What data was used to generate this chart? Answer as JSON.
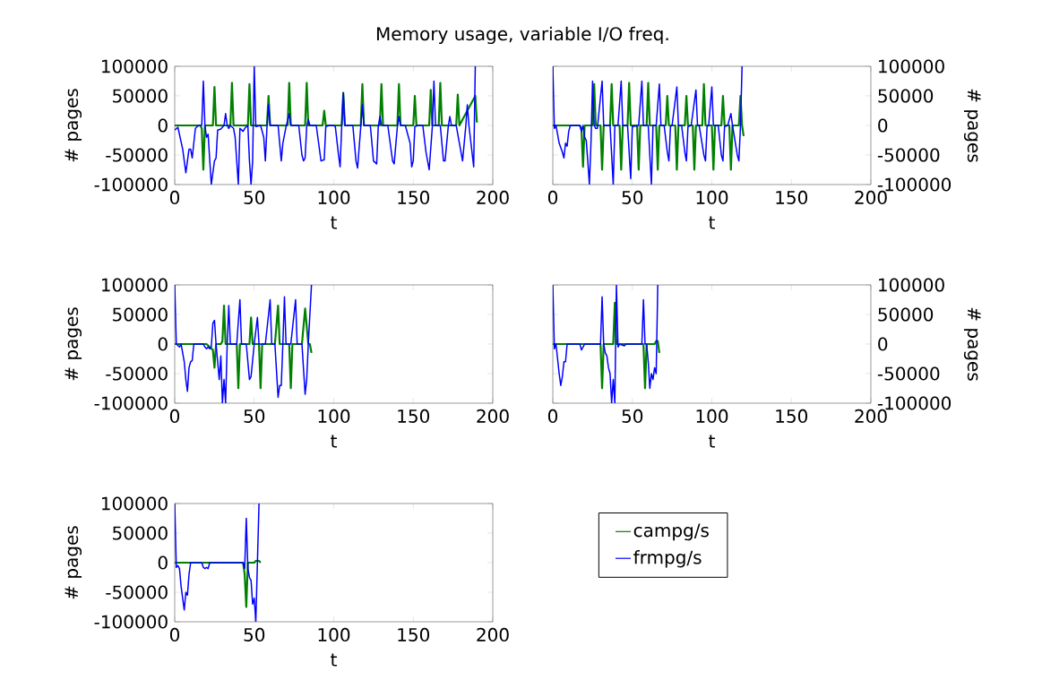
{
  "chart_data": [
    {
      "type": "line",
      "title": "Memory usage, variable I/O freq.",
      "xlabel": "t",
      "ylabel": "# pages",
      "xlim": [
        0,
        200
      ],
      "ylim": [
        -100000,
        100000
      ],
      "xticks": [
        0,
        50,
        100,
        150,
        200
      ],
      "yticks": [
        -100000,
        -50000,
        0,
        50000,
        100000
      ],
      "grid": false,
      "marker": "none",
      "series": [
        {
          "color": "#008000",
          "x": [
            0,
            16,
            17,
            18,
            19,
            24,
            25,
            26,
            35,
            36,
            37,
            46,
            47,
            48,
            58,
            59,
            60,
            71,
            72,
            73,
            82,
            83,
            84,
            93,
            94,
            95,
            105,
            106,
            107,
            117,
            118,
            119,
            129,
            130,
            131,
            140,
            141,
            142,
            150,
            151,
            152,
            160,
            161,
            162,
            166,
            167,
            168,
            177,
            178,
            179,
            189,
            190
          ],
          "values": [
            0,
            0,
            -5000,
            -75000,
            0,
            0,
            65000,
            0,
            0,
            72000,
            0,
            0,
            70000,
            0,
            0,
            50000,
            0,
            0,
            72000,
            0,
            0,
            72000,
            0,
            0,
            25000,
            0,
            0,
            55000,
            0,
            0,
            70000,
            0,
            0,
            70000,
            0,
            0,
            70000,
            0,
            0,
            50000,
            0,
            0,
            60000,
            0,
            0,
            72000,
            0,
            0,
            52000,
            0,
            50000,
            5000
          ]
        },
        {
          "color": "#0000ff",
          "x": [
            0,
            2,
            5,
            7,
            9,
            10,
            11,
            13,
            15,
            17,
            18,
            19,
            20,
            21,
            23,
            25,
            26,
            27,
            29,
            31,
            32,
            33,
            34,
            35,
            37,
            38,
            40,
            41,
            43,
            44,
            46,
            47,
            48,
            49,
            50,
            51,
            54,
            56,
            57,
            58,
            59,
            60,
            65,
            67,
            68,
            70,
            72,
            73,
            78,
            80,
            81,
            82,
            83,
            84,
            85,
            89,
            92,
            94,
            95,
            97,
            100,
            101,
            103,
            104,
            105,
            106,
            107,
            112,
            114,
            115,
            117,
            118,
            119,
            123,
            125,
            127,
            128,
            129,
            130,
            134,
            137,
            138,
            140,
            141,
            142,
            145,
            148,
            149,
            150,
            151,
            153,
            156,
            158,
            160,
            162,
            163,
            164,
            167,
            169,
            170,
            172,
            173,
            174,
            177,
            180,
            181,
            183,
            184,
            185,
            188,
            189
          ],
          "values": [
            -8000,
            -3000,
            -40000,
            -80000,
            -40000,
            -40000,
            -55000,
            -5000,
            0,
            0,
            75000,
            0,
            -20000,
            -15000,
            -100000,
            -60000,
            -55000,
            -8000,
            -6000,
            0,
            20000,
            0,
            -5000,
            0,
            -5000,
            -20000,
            -100000,
            -5000,
            -10000,
            -5000,
            0,
            -60000,
            -100000,
            -60000,
            100000,
            -2000,
            0,
            -20000,
            -60000,
            -3000,
            35000,
            0,
            0,
            -60000,
            -30000,
            -2000,
            20000,
            0,
            0,
            -50000,
            -60000,
            -55000,
            -2000,
            10000,
            0,
            0,
            -60000,
            -58000,
            -2000,
            0,
            0,
            -2000,
            -50000,
            -70000,
            -2000,
            55000,
            0,
            0,
            -60000,
            -72000,
            -2000,
            35000,
            0,
            0,
            -60000,
            -65000,
            -2000,
            15000,
            0,
            0,
            -60000,
            -65000,
            -2000,
            15000,
            0,
            0,
            -30000,
            -70000,
            -60000,
            -2000,
            0,
            0,
            -45000,
            -75000,
            -2000,
            75000,
            0,
            0,
            -60000,
            -60000,
            -2000,
            15000,
            0,
            0,
            -45000,
            -60000,
            -2000,
            35000,
            0,
            -70000,
            100000
          ]
        }
      ]
    },
    {
      "type": "line",
      "xlabel": "t",
      "ylabel": "# pages",
      "xlim": [
        0,
        200
      ],
      "ylim": [
        -100000,
        100000
      ],
      "xticks": [
        0,
        50,
        100,
        150,
        200
      ],
      "yticks": [
        -100000,
        -50000,
        0,
        50000,
        100000
      ],
      "grid": false,
      "marker": "none",
      "series": [
        {
          "color": "#008000",
          "x": [
            0,
            17,
            18,
            19,
            20,
            25,
            26,
            27,
            30,
            31,
            32,
            36,
            37,
            38,
            42,
            43,
            44,
            47,
            48,
            49,
            53,
            54,
            55,
            59,
            60,
            61,
            65,
            66,
            67,
            71,
            72,
            73,
            77,
            78,
            79,
            83,
            84,
            85,
            88,
            89,
            90,
            94,
            95,
            96,
            100,
            101,
            102,
            106,
            107,
            108,
            111,
            112,
            113,
            117,
            118,
            119,
            120
          ],
          "values": [
            0,
            0,
            -5000,
            -70000,
            0,
            0,
            70000,
            0,
            0,
            -75000,
            0,
            0,
            70000,
            0,
            0,
            -75000,
            0,
            0,
            72000,
            0,
            0,
            -75000,
            0,
            0,
            72000,
            0,
            0,
            -75000,
            0,
            0,
            50000,
            0,
            0,
            -75000,
            0,
            0,
            50000,
            0,
            0,
            -75000,
            0,
            0,
            70000,
            0,
            0,
            -75000,
            0,
            0,
            50000,
            0,
            0,
            -75000,
            0,
            0,
            50000,
            0,
            -18000
          ]
        },
        {
          "color": "#0000ff",
          "x": [
            0,
            1,
            2,
            4,
            6,
            7,
            8,
            9,
            10,
            11,
            17,
            18,
            19,
            20,
            21,
            22,
            23,
            24,
            25,
            26,
            27,
            28,
            31,
            32,
            36,
            38,
            39,
            41,
            43,
            44,
            47,
            49,
            50,
            54,
            56,
            57,
            60,
            62,
            63,
            65,
            67,
            68,
            70,
            72,
            73,
            74,
            75,
            78,
            79,
            81,
            83,
            84,
            85,
            87,
            90,
            91,
            92,
            95,
            96,
            97,
            98,
            100,
            101,
            104,
            106,
            107,
            108,
            110,
            112,
            113,
            116,
            117,
            118,
            119
          ],
          "values": [
            100000,
            -5000,
            0,
            -30000,
            -45000,
            -55000,
            -30000,
            -35000,
            -10000,
            0,
            0,
            -10000,
            0,
            -20000,
            -25000,
            -60000,
            -100000,
            -30000,
            75000,
            0,
            -5000,
            -5000,
            75000,
            0,
            0,
            -100000,
            0,
            0,
            75000,
            0,
            0,
            -90000,
            -2000,
            0,
            75000,
            0,
            0,
            -100000,
            0,
            0,
            70000,
            0,
            0,
            -45000,
            -60000,
            -2000,
            0,
            65000,
            0,
            0,
            -45000,
            -60000,
            -2000,
            0,
            60000,
            0,
            0,
            -50000,
            -60000,
            -2000,
            0,
            65000,
            0,
            0,
            -50000,
            -60000,
            -2000,
            0,
            20000,
            0,
            -50000,
            -60000,
            -2000,
            100000
          ]
        }
      ]
    },
    {
      "type": "line",
      "xlabel": "t",
      "ylabel": "# pages",
      "xlim": [
        0,
        200
      ],
      "ylim": [
        -100000,
        100000
      ],
      "xticks": [
        0,
        50,
        100,
        150,
        200
      ],
      "yticks": [
        -100000,
        -50000,
        0,
        50000,
        100000
      ],
      "grid": false,
      "marker": "none",
      "series": [
        {
          "color": "#008000",
          "x": [
            0,
            20,
            22,
            24,
            25,
            26,
            29,
            30,
            31,
            32,
            39,
            40,
            41,
            47,
            48,
            49,
            53,
            54,
            55,
            63,
            65,
            66,
            72,
            73,
            74,
            80,
            82,
            84,
            85,
            86
          ],
          "values": [
            0,
            0,
            -5000,
            -10000,
            -40000,
            0,
            0,
            5000,
            65000,
            0,
            0,
            -75000,
            0,
            0,
            45000,
            0,
            0,
            -75000,
            0,
            0,
            65000,
            0,
            0,
            -75000,
            0,
            0,
            60000,
            0,
            0,
            -15000
          ]
        },
        {
          "color": "#0000ff",
          "x": [
            0,
            1,
            3,
            4,
            6,
            7,
            8,
            9,
            10,
            11,
            12,
            18,
            19,
            20,
            21,
            22,
            23,
            24,
            25,
            26,
            27,
            28,
            29,
            30,
            31,
            32,
            33,
            34,
            35,
            39,
            41,
            42,
            45,
            47,
            48,
            50,
            52,
            53,
            57,
            60,
            61,
            63,
            65,
            66,
            67,
            68,
            69,
            70,
            73,
            76,
            77,
            80,
            82,
            83,
            84,
            86
          ],
          "values": [
            100000,
            0,
            -5000,
            0,
            -30000,
            -60000,
            -80000,
            -40000,
            -30000,
            -28000,
            0,
            0,
            -5000,
            -8000,
            -5000,
            -8000,
            -5000,
            35000,
            40000,
            0,
            -30000,
            -60000,
            -20000,
            -100000,
            -60000,
            -100000,
            0,
            65000,
            0,
            0,
            75000,
            0,
            0,
            -60000,
            -55000,
            0,
            45000,
            0,
            0,
            75000,
            0,
            0,
            -90000,
            -70000,
            -70000,
            0,
            80000,
            0,
            0,
            75000,
            0,
            0,
            -85000,
            -60000,
            0,
            100000
          ]
        }
      ]
    },
    {
      "type": "line",
      "xlabel": "t",
      "ylabel": "# pages",
      "xlim": [
        0,
        200
      ],
      "ylim": [
        -100000,
        100000
      ],
      "xticks": [
        0,
        50,
        100,
        150,
        200
      ],
      "yticks": [
        -100000,
        -50000,
        0,
        50000,
        100000
      ],
      "grid": false,
      "marker": "none",
      "series": [
        {
          "color": "#008000",
          "x": [
            0,
            30,
            31,
            32,
            38,
            39,
            40,
            57,
            58,
            59,
            64,
            65,
            66,
            67
          ],
          "values": [
            0,
            0,
            -75000,
            0,
            0,
            70000,
            0,
            0,
            -75000,
            0,
            0,
            5000,
            5000,
            -15000
          ]
        },
        {
          "color": "#0000ff",
          "x": [
            0,
            1,
            2,
            4,
            5,
            6,
            7,
            8,
            9,
            17,
            18,
            19,
            20,
            30,
            31,
            32,
            33,
            34,
            35,
            36,
            37,
            38,
            39,
            40,
            41,
            42,
            45,
            46,
            56,
            57,
            58,
            59,
            60,
            61,
            62,
            63,
            64,
            65,
            66
          ],
          "values": [
            100000,
            -8000,
            0,
            -50000,
            -70000,
            -55000,
            -30000,
            -30000,
            0,
            0,
            -10000,
            -5000,
            0,
            0,
            80000,
            0,
            -15000,
            -20000,
            -40000,
            -50000,
            -100000,
            -60000,
            -100000,
            100000,
            -5000,
            0,
            -3000,
            0,
            0,
            75000,
            0,
            0,
            -30000,
            -75000,
            -50000,
            -60000,
            -40000,
            -50000,
            100000
          ]
        }
      ]
    },
    {
      "type": "line",
      "xlabel": "t",
      "ylabel": "# pages",
      "xlim": [
        0,
        200
      ],
      "ylim": [
        -100000,
        100000
      ],
      "xticks": [
        0,
        50,
        100,
        150,
        200
      ],
      "yticks": [
        -100000,
        -50000,
        0,
        50000,
        100000
      ],
      "grid": false,
      "marker": "none",
      "legend": "right",
      "series": [
        {
          "name": "campg/s",
          "color": "#008000",
          "x": [
            0,
            43,
            44,
            45,
            46,
            50,
            51,
            52,
            53,
            54
          ],
          "values": [
            0,
            0,
            -20000,
            -75000,
            0,
            0,
            3000,
            3000,
            3000,
            0
          ]
        },
        {
          "name": "frmpg/s",
          "color": "#0000ff",
          "x": [
            0,
            1,
            2,
            3,
            4,
            5,
            6,
            7,
            8,
            9,
            10,
            17,
            18,
            19,
            20,
            21,
            22,
            43,
            44,
            45,
            46,
            47,
            48,
            49,
            50,
            51,
            52,
            53
          ],
          "values": [
            100000,
            -8000,
            -5000,
            -10000,
            -40000,
            -60000,
            -80000,
            -50000,
            -55000,
            -20000,
            0,
            0,
            -8000,
            -10000,
            -8000,
            -10000,
            0,
            0,
            -10000,
            75000,
            -10000,
            -25000,
            -30000,
            -70000,
            -60000,
            -100000,
            0,
            100000
          ]
        }
      ]
    }
  ]
}
